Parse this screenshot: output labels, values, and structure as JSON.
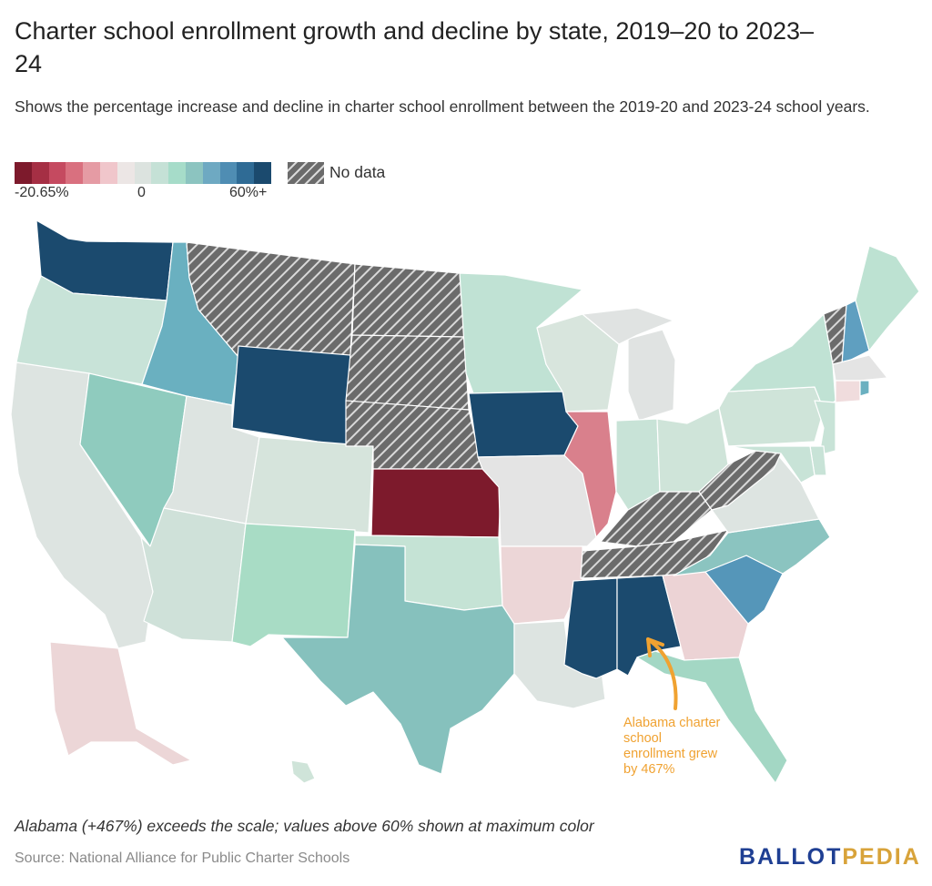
{
  "title": "Charter school enrollment growth and decline by state, 2019–20 to 2023–24",
  "subtitle": "Shows the percentage increase and decline in charter school enrollment between the 2019-20 and 2023-24 school years.",
  "legend": {
    "min_label": "-20.65%",
    "mid_label": "0",
    "max_label": "60%+",
    "no_data_label": "No data",
    "gradient_colors": [
      "#7d1a2c",
      "#a52f44",
      "#c54a60",
      "#d9707f",
      "#e59ba4",
      "#f0c6cb",
      "#ece6e5",
      "#dce3df",
      "#c5e1d6",
      "#a6dcc9",
      "#8cc4c0",
      "#6ea9c2",
      "#4f8db3",
      "#2f6b95",
      "#1b4a6e"
    ],
    "no_data_color": "#6b6b6b"
  },
  "annotation": "Alabama charter school enrollment grew by 467%",
  "footnote": "Alabama (+467%) exceeds the scale; values above 60% shown at maximum color",
  "source": "Source: National Alliance for Public Charter Schools",
  "brand": {
    "part1": "BALLOT",
    "part2": "PEDIA"
  },
  "annotation_color": "#f0a231",
  "states": [
    {
      "name": "Washington",
      "category": "max",
      "color": "#1b4a6e"
    },
    {
      "name": "Oregon",
      "category": "low-growth",
      "color": "#c8e3d8"
    },
    {
      "name": "California",
      "category": "near-zero",
      "color": "#dde4e1"
    },
    {
      "name": "Nevada",
      "category": "moderate-growth",
      "color": "#8fcbbe"
    },
    {
      "name": "Idaho",
      "category": "growth",
      "color": "#6ab0c0"
    },
    {
      "name": "Montana",
      "category": "no-data",
      "color": "#6b6b6b"
    },
    {
      "name": "Wyoming",
      "category": "max",
      "color": "#1b4a6e"
    },
    {
      "name": "Utah",
      "category": "near-zero",
      "color": "#dde4e1"
    },
    {
      "name": "Colorado",
      "category": "low-growth",
      "color": "#d6e4dc"
    },
    {
      "name": "Arizona",
      "category": "low-growth",
      "color": "#cfe1d9"
    },
    {
      "name": "New Mexico",
      "category": "moderate-growth",
      "color": "#a8dcc5"
    },
    {
      "name": "North Dakota",
      "category": "no-data",
      "color": "#6b6b6b"
    },
    {
      "name": "South Dakota",
      "category": "no-data",
      "color": "#6b6b6b"
    },
    {
      "name": "Nebraska",
      "category": "no-data",
      "color": "#6b6b6b"
    },
    {
      "name": "Kansas",
      "category": "decline-max",
      "color": "#7d1a2c"
    },
    {
      "name": "Oklahoma",
      "category": "low-growth",
      "color": "#c5e3d5"
    },
    {
      "name": "Texas",
      "category": "growth",
      "color": "#86c1bd"
    },
    {
      "name": "Minnesota",
      "category": "low-growth",
      "color": "#c0e2d4"
    },
    {
      "name": "Iowa",
      "category": "max",
      "color": "#1b4a6e"
    },
    {
      "name": "Missouri",
      "category": "near-zero",
      "color": "#e4e4e4"
    },
    {
      "name": "Arkansas",
      "category": "slight-decline",
      "color": "#ecd6d7"
    },
    {
      "name": "Louisiana",
      "category": "near-zero",
      "color": "#dde4e1"
    },
    {
      "name": "Wisconsin",
      "category": "near-zero",
      "color": "#d8e5dd"
    },
    {
      "name": "Illinois",
      "category": "decline",
      "color": "#d9808c"
    },
    {
      "name": "Michigan",
      "category": "near-zero",
      "color": "#e0e3e2"
    },
    {
      "name": "Indiana",
      "category": "low-growth",
      "color": "#c8e3d7"
    },
    {
      "name": "Ohio",
      "category": "low-growth",
      "color": "#cfe4d9"
    },
    {
      "name": "Kentucky",
      "category": "no-data",
      "color": "#6b6b6b"
    },
    {
      "name": "Tennessee",
      "category": "no-data",
      "color": "#6b6b6b"
    },
    {
      "name": "Mississippi",
      "category": "max",
      "color": "#1b4a6e"
    },
    {
      "name": "Alabama",
      "category": "max",
      "color": "#1b4a6e"
    },
    {
      "name": "Georgia",
      "category": "slight-decline",
      "color": "#ecd3d5"
    },
    {
      "name": "Florida",
      "category": "moderate-growth",
      "color": "#a3d7c4"
    },
    {
      "name": "South Carolina",
      "category": "growth",
      "color": "#5596b9"
    },
    {
      "name": "North Carolina",
      "category": "growth",
      "color": "#8bc4c0"
    },
    {
      "name": "Virginia",
      "category": "near-zero",
      "color": "#dde4e1"
    },
    {
      "name": "West Virginia",
      "category": "no-data",
      "color": "#6b6b6b"
    },
    {
      "name": "Pennsylvania",
      "category": "low-growth",
      "color": "#cfe4d9"
    },
    {
      "name": "New York",
      "category": "low-growth",
      "color": "#c0e2d4"
    },
    {
      "name": "Vermont",
      "category": "no-data",
      "color": "#6b6b6b"
    },
    {
      "name": "New Hampshire",
      "category": "growth",
      "color": "#5f9fc0"
    },
    {
      "name": "Maine",
      "category": "low-growth",
      "color": "#bde2d2"
    },
    {
      "name": "Massachusetts",
      "category": "near-zero",
      "color": "#e4e4e4"
    },
    {
      "name": "Connecticut",
      "category": "slight-decline",
      "color": "#f0dcdd"
    },
    {
      "name": "Rhode Island",
      "category": "growth",
      "color": "#6ab0c0"
    },
    {
      "name": "New Jersey",
      "category": "low-growth",
      "color": "#c8e3d7"
    },
    {
      "name": "Delaware",
      "category": "low-growth",
      "color": "#c8e3d7"
    },
    {
      "name": "Maryland",
      "category": "low-growth",
      "color": "#c8e3d7"
    },
    {
      "name": "Alaska",
      "category": "slight-decline",
      "color": "#ecd6d7"
    },
    {
      "name": "Hawaii",
      "category": "low-growth",
      "color": "#cfe4d9"
    }
  ]
}
